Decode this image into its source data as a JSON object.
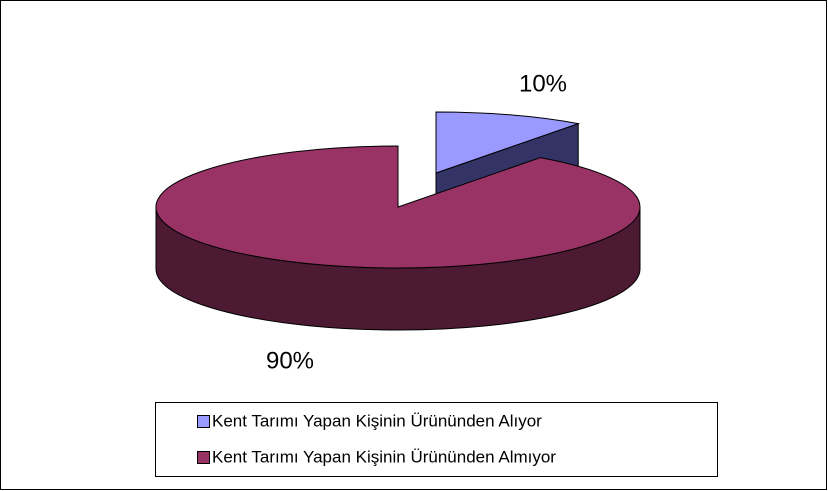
{
  "chart_data": {
    "type": "pie",
    "categories": [
      "Kent Tarımı Yapan Kişinin Ürününden Alıyor",
      "Kent Tarımı Yapan Kişinin Ürününden Almıyor"
    ],
    "values": [
      10,
      90
    ],
    "value_labels": [
      "10%",
      "90%"
    ],
    "colors": [
      "#9999ff",
      "#993366"
    ],
    "side_colors": [
      "#333366",
      "#4d1a33"
    ]
  }
}
